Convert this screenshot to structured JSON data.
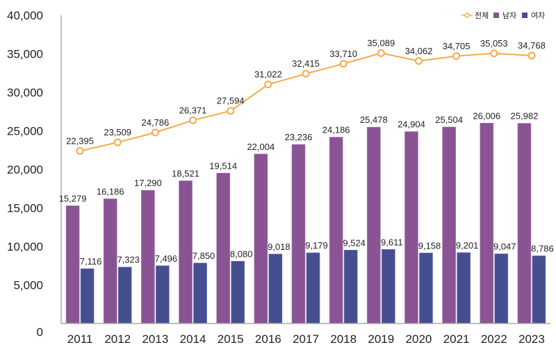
{
  "chart_data": {
    "type": "bar",
    "title": "",
    "xlabel": "",
    "ylabel": "",
    "ylim": [
      0,
      40000
    ],
    "yticks": [
      0,
      5000,
      10000,
      15000,
      20000,
      25000,
      30000,
      35000,
      40000
    ],
    "ytick_labels": [
      "0",
      "5,000",
      "10,000",
      "15,000",
      "20,000",
      "25,000",
      "30,000",
      "35,000",
      "40,000"
    ],
    "grid": false,
    "legend_position": "top-right",
    "categories": [
      "2011",
      "2012",
      "2013",
      "2014",
      "2015",
      "2016",
      "2017",
      "2018",
      "2019",
      "2020",
      "2021",
      "2022",
      "2023"
    ],
    "series": [
      {
        "name": "전체",
        "kind": "line",
        "color": "#f5a94a",
        "values": [
          22395,
          23509,
          24786,
          26371,
          27594,
          31022,
          32415,
          33710,
          35089,
          34062,
          34705,
          35053,
          34768
        ],
        "labels": [
          "22,395",
          "23,509",
          "24,786",
          "26,371",
          "27,594",
          "31,022",
          "32,415",
          "33,710",
          "35,089",
          "34,062",
          "34,705",
          "35,053",
          "34,768"
        ]
      },
      {
        "name": "남자",
        "kind": "bar",
        "color": "#8a5494",
        "values": [
          15279,
          16186,
          17290,
          18521,
          19514,
          22004,
          23236,
          24186,
          25478,
          24904,
          25504,
          26006,
          25982
        ],
        "labels": [
          "15,279",
          "16,186",
          "17,290",
          "18,521",
          "19,514",
          "22,004",
          "23,236",
          "24,186",
          "25,478",
          "24,904",
          "25,504",
          "26,006",
          "25,982"
        ]
      },
      {
        "name": "여자",
        "kind": "bar",
        "color": "#454f90",
        "values": [
          7116,
          7323,
          7496,
          7850,
          8080,
          9018,
          9179,
          9524,
          9611,
          9158,
          9201,
          9047,
          8786
        ],
        "labels": [
          "7,116",
          "7,323",
          "7,496",
          "7,850",
          "8,080",
          "9,018",
          "9,179",
          "9,524",
          "9,611",
          "9,158",
          "9,201",
          "9,047",
          "8,786"
        ]
      }
    ]
  }
}
